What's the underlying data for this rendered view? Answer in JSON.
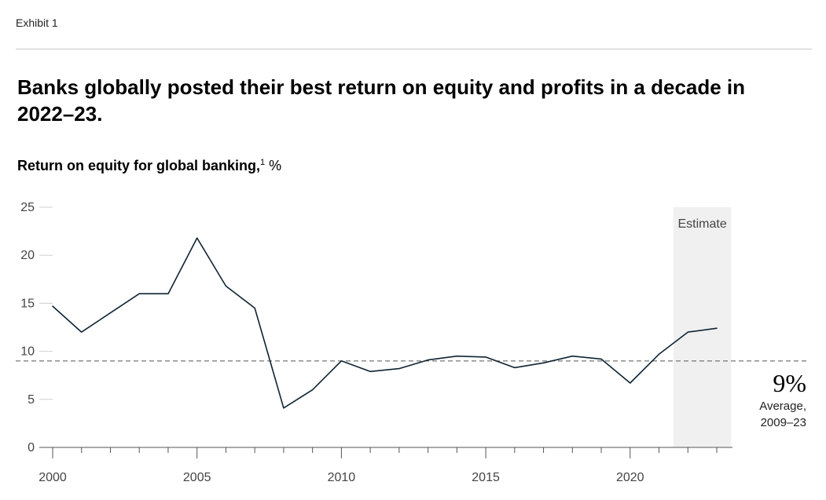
{
  "header": {
    "exhibit_label": "Exhibit 1",
    "title": "Banks globally posted their best return on equity and profits in a decade in 2022–23.",
    "subtitle": "Return on equity for global banking,",
    "subtitle_footnote": "1",
    "subtitle_unit": " %"
  },
  "colors": {
    "line": "#0f2433",
    "axis": "#555555",
    "gridline": "#d0d0d0",
    "estimate_band": "#f0f0f0",
    "average_line": "#555555"
  },
  "chart_data": {
    "type": "line",
    "x": [
      2000,
      2001,
      2002,
      2003,
      2004,
      2005,
      2006,
      2007,
      2008,
      2009,
      2010,
      2011,
      2012,
      2013,
      2014,
      2015,
      2016,
      2017,
      2018,
      2019,
      2020,
      2021,
      2022,
      2023
    ],
    "y": [
      14.7,
      12.0,
      14.0,
      16.0,
      16.0,
      21.8,
      16.8,
      14.5,
      4.1,
      6.0,
      9.0,
      7.9,
      8.2,
      9.1,
      9.5,
      9.4,
      8.3,
      8.8,
      9.5,
      9.2,
      6.7,
      9.7,
      12.0,
      12.4
    ],
    "xlim": [
      2000,
      2023
    ],
    "ylim": [
      0,
      25
    ],
    "x_tick_labels": [
      "2000",
      "2005",
      "2010",
      "2015",
      "2020"
    ],
    "x_tick_label_values": [
      2000,
      2005,
      2010,
      2015,
      2020
    ],
    "y_tick_labels": [
      "0",
      "5",
      "10",
      "15",
      "20",
      "25"
    ],
    "y_tick_values": [
      0,
      5,
      10,
      15,
      20,
      25
    ],
    "estimate_range": [
      2022,
      2023
    ],
    "estimate_label": "Estimate",
    "average_value": 9,
    "average_label": "9%",
    "average_note_line1": "Average,",
    "average_note_line2": "2009–23"
  }
}
